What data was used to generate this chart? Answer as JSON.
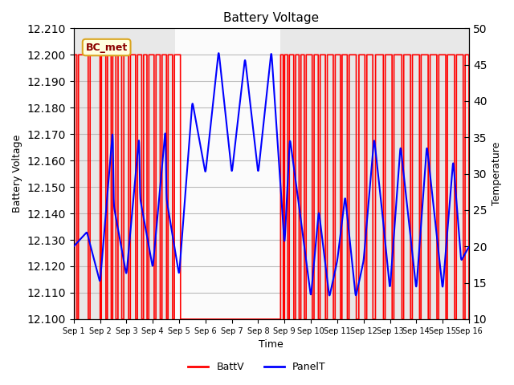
{
  "title": "Battery Voltage",
  "xlabel": "Time",
  "ylabel_left": "Battery Voltage",
  "ylabel_right": "Temperature",
  "ylim_left": [
    12.1,
    12.21
  ],
  "ylim_right": [
    10,
    50
  ],
  "yticks_left": [
    12.1,
    12.11,
    12.12,
    12.13,
    12.14,
    12.15,
    12.16,
    12.17,
    12.18,
    12.19,
    12.2,
    12.21
  ],
  "yticks_right": [
    10,
    15,
    20,
    25,
    30,
    35,
    40,
    45,
    50
  ],
  "background_color": "#ffffff",
  "plot_bg_color": "#e8e8e8",
  "shaded_region": [
    3.85,
    7.85
  ],
  "legend_items": [
    "BattV",
    "PanelT"
  ],
  "legend_colors": [
    "red",
    "blue"
  ],
  "annotation_text": "BC_met",
  "batt_color": "red",
  "panel_color": "blue",
  "xtick_labels": [
    "Sep 1",
    "Sep 2",
    "Sep 3",
    "Sep 4",
    "Sep 5",
    "Sep 6",
    "Sep 7",
    "Sep 8",
    "Sep 9",
    "Sep 10",
    "Sep 11",
    "Sep 12",
    "Sep 13",
    "Sep 14",
    "Sep 15",
    "Sep 16"
  ],
  "xtick_positions": [
    0,
    1,
    2,
    3,
    4,
    5,
    6,
    7,
    8,
    9,
    10,
    11,
    12,
    13,
    14,
    15
  ],
  "xlim": [
    0,
    15
  ]
}
